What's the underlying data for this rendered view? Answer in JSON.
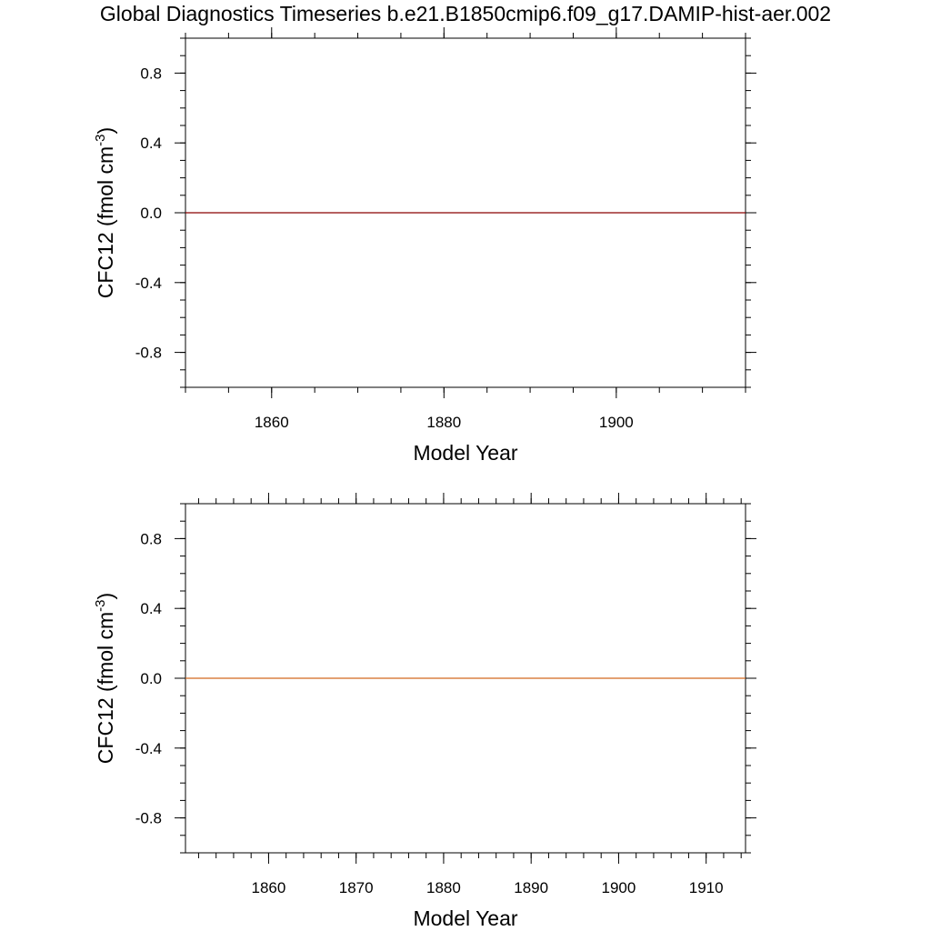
{
  "title": "Global Diagnostics Timeseries b.e21.B1850cmip6.f09_g17.DAMIP-hist-aer.002",
  "chart_data": [
    {
      "type": "line",
      "xlabel": "Model Year",
      "ylabel": "CFC12 (fmol cm",
      "ylabel_sup": "-3",
      "ylabel_close": ")",
      "xlim": [
        1850,
        1915
      ],
      "ylim": [
        -1.0,
        1.0
      ],
      "x_major_ticks": [
        1860,
        1880,
        1900
      ],
      "x_minor_step": 5,
      "x_tick_labels": [
        "1860",
        "1880",
        "1900"
      ],
      "y_major_ticks": [
        0.8,
        0.4,
        0.0,
        -0.4,
        -0.8
      ],
      "y_minor_step": 0.1,
      "y_tick_labels": [
        "0.8",
        "0.4",
        "0.0",
        "-0.4",
        "-0.8"
      ],
      "grid": false,
      "series": [
        {
          "color": "#8b0000",
          "x": [
            1850,
            1915
          ],
          "y": [
            0.0,
            0.0
          ]
        }
      ]
    },
    {
      "type": "line",
      "xlabel": "Model Year",
      "ylabel": "CFC12 (fmol cm",
      "ylabel_sup": "-3",
      "ylabel_close": ")",
      "xlim": [
        1850.5,
        1914.5
      ],
      "ylim": [
        -1.0,
        1.0
      ],
      "x_major_ticks": [
        1860,
        1870,
        1880,
        1890,
        1900,
        1910
      ],
      "x_minor_step": 2,
      "x_tick_labels": [
        "1860",
        "1870",
        "1880",
        "1890",
        "1900",
        "1910"
      ],
      "y_major_ticks": [
        0.8,
        0.4,
        0.0,
        -0.4,
        -0.8
      ],
      "y_minor_step": 0.1,
      "y_tick_labels": [
        "0.8",
        "0.4",
        "0.0",
        "-0.4",
        "-0.8"
      ],
      "grid": false,
      "series": [
        {
          "color": "#d2691e",
          "x": [
            1850.5,
            1914.5
          ],
          "y": [
            0.0,
            0.0
          ]
        }
      ]
    }
  ]
}
